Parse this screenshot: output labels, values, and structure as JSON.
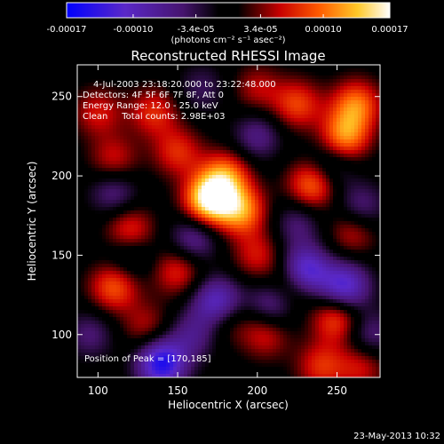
{
  "chart_data": {
    "type": "heatmap",
    "title": "Reconstructed RHESSI Image",
    "xlabel": "Heliocentric X (arcsec)",
    "ylabel": "Heliocentric Y (arcsec)",
    "xlim": [
      87,
      277
    ],
    "ylim": [
      73,
      270
    ],
    "x_ticks": [
      100,
      150,
      200,
      250
    ],
    "y_ticks": [
      100,
      150,
      200,
      250
    ],
    "x_tick_labels": [
      "100",
      "150",
      "200",
      "250"
    ],
    "y_tick_labels": [
      "100",
      "150",
      "200",
      "250"
    ],
    "colorbar": {
      "range": [
        -0.00017,
        0.00017
      ],
      "ticks": [
        -0.00017,
        -0.0001,
        -3.4e-05,
        3.4e-05,
        0.0001,
        0.00017
      ],
      "tick_labels": [
        "-0.00017",
        "-0.00010",
        "-3.4e-05",
        "3.4e-05",
        "0.00010",
        "0.00017"
      ],
      "unit_label": "(photons cm⁻² s⁻¹ asec⁻²)"
    },
    "annotations": [
      "4-Jul-2003 23:18:20.000 to 23:22:48.000",
      "Detectors: 4F 5F 6F 7F 8F, Att 0",
      "Energy Range: 12.0 - 25.0 keV",
      "Clean     Total counts: 2.98E+03",
      "Position of Peak = [170,185]"
    ],
    "peak": [
      170,
      185
    ],
    "sources": [
      {
        "x": 170,
        "y": 185,
        "v": 0.00017
      },
      {
        "x": 190,
        "y": 178,
        "v": 0.00011
      },
      {
        "x": 180,
        "y": 200,
        "v": 0.0001
      },
      {
        "x": 235,
        "y": 195,
        "v": 0.00011
      },
      {
        "x": 255,
        "y": 225,
        "v": 0.00011
      },
      {
        "x": 262,
        "y": 245,
        "v": 0.0001
      },
      {
        "x": 225,
        "y": 245,
        "v": 8e-05
      },
      {
        "x": 135,
        "y": 240,
        "v": 7e-05
      },
      {
        "x": 150,
        "y": 215,
        "v": 7e-05
      },
      {
        "x": 110,
        "y": 210,
        "v": 6e-05
      },
      {
        "x": 120,
        "y": 165,
        "v": 8e-05
      },
      {
        "x": 110,
        "y": 130,
        "v": 9e-05
      },
      {
        "x": 150,
        "y": 140,
        "v": 7e-05
      },
      {
        "x": 200,
        "y": 150,
        "v": 6e-05
      },
      {
        "x": 220,
        "y": 130,
        "v": 7e-05
      },
      {
        "x": 205,
        "y": 100,
        "v": 6e-05
      },
      {
        "x": 260,
        "y": 165,
        "v": 6e-05
      },
      {
        "x": 250,
        "y": 110,
        "v": 9e-05
      },
      {
        "x": 180,
        "y": 110,
        "v": 5e-05
      },
      {
        "x": 130,
        "y": 105,
        "v": 5e-05
      },
      {
        "x": 100,
        "y": 240,
        "v": 6e-05
      },
      {
        "x": 240,
        "y": 80,
        "v": 7e-05
      },
      {
        "x": 200,
        "y": 255,
        "v": 5e-05
      },
      {
        "x": 265,
        "y": 80,
        "v": 6e-05
      },
      {
        "x": 140,
        "y": 82,
        "v": -0.00015
      },
      {
        "x": 175,
        "y": 120,
        "v": -0.00012
      },
      {
        "x": 230,
        "y": 140,
        "v": -0.00013
      },
      {
        "x": 255,
        "y": 130,
        "v": -0.00012
      },
      {
        "x": 210,
        "y": 120,
        "v": -8e-05
      },
      {
        "x": 160,
        "y": 160,
        "v": -7e-05
      },
      {
        "x": 265,
        "y": 180,
        "v": -6e-05
      },
      {
        "x": 200,
        "y": 225,
        "v": -6e-05
      },
      {
        "x": 110,
        "y": 190,
        "v": -6e-05
      },
      {
        "x": 245,
        "y": 205,
        "v": -6e-05
      },
      {
        "x": 120,
        "y": 150,
        "v": -5e-05
      },
      {
        "x": 160,
        "y": 100,
        "v": -6e-05
      },
      {
        "x": 225,
        "y": 170,
        "v": -5e-05
      },
      {
        "x": 95,
        "y": 100,
        "v": -5e-05
      },
      {
        "x": 165,
        "y": 255,
        "v": -4e-05
      },
      {
        "x": 270,
        "y": 100,
        "v": -6e-05
      }
    ]
  },
  "footer": {
    "date": "23-May-2013 10:32"
  }
}
